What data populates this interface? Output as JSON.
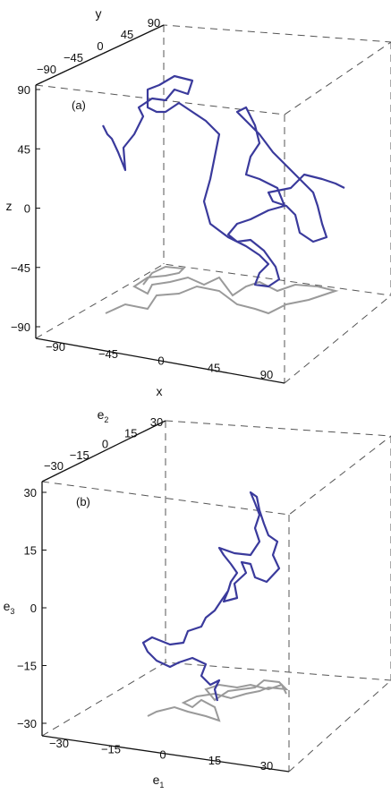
{
  "colors": {
    "trajectory": "#3a3a9c",
    "projection": "#9a9a9a",
    "box": "#555555",
    "axis": "#111111"
  },
  "chart_data": [
    {
      "type": "line",
      "panel_label": "(a)",
      "xlabel": "x",
      "ylabel": "y",
      "zlabel": "z",
      "xlim": [
        -100,
        100
      ],
      "ylim": [
        -100,
        100
      ],
      "zlim": [
        -100,
        100
      ],
      "x_ticks": [
        "−90",
        "−45",
        "0",
        "45",
        "90"
      ],
      "y_ticks": [
        "−90",
        "−45",
        "0",
        "45",
        "90"
      ],
      "z_ticks": [
        "90",
        "45",
        "0",
        "−45",
        "−90"
      ],
      "grid": false,
      "series": [
        {
          "points": [
            [
              -45,
              5,
              80
            ],
            [
              -50,
              15,
              75
            ],
            [
              -55,
              25,
              60
            ],
            [
              -40,
              20,
              50
            ],
            [
              -20,
              15,
              60
            ],
            [
              -10,
              5,
              80
            ],
            [
              -20,
              -5,
              95
            ],
            [
              -10,
              0,
              100
            ],
            [
              0,
              10,
              90
            ],
            [
              10,
              15,
              95
            ],
            [
              20,
              20,
              100
            ],
            [
              25,
              15,
              90
            ],
            [
              20,
              10,
              80
            ],
            [
              30,
              0,
              70
            ],
            [
              15,
              -10,
              60
            ],
            [
              10,
              -20,
              40
            ],
            [
              0,
              -25,
              20
            ],
            [
              10,
              -30,
              0
            ],
            [
              20,
              -20,
              -20
            ],
            [
              30,
              -10,
              -30
            ],
            [
              35,
              0,
              -15
            ],
            [
              45,
              10,
              5
            ],
            [
              55,
              20,
              15
            ],
            [
              60,
              35,
              5
            ],
            [
              65,
              45,
              -5
            ],
            [
              55,
              50,
              -20
            ],
            [
              40,
              40,
              -30
            ],
            [
              35,
              30,
              -45
            ],
            [
              40,
              20,
              -55
            ],
            [
              50,
              25,
              -60
            ],
            [
              45,
              35,
              -50
            ],
            [
              30,
              30,
              -40
            ],
            [
              20,
              20,
              -30
            ],
            [
              25,
              0,
              -10
            ],
            [
              30,
              -10,
              10
            ],
            [
              40,
              -5,
              30
            ],
            [
              45,
              10,
              40
            ],
            [
              40,
              20,
              30
            ],
            [
              30,
              30,
              20
            ],
            [
              35,
              40,
              10
            ],
            [
              50,
              50,
              15
            ]
          ]
        },
        {
          "points": [
            [
              -70,
              10,
              10
            ],
            [
              -65,
              -5,
              15
            ],
            [
              -75,
              -10,
              25
            ],
            [
              -70,
              0,
              20
            ]
          ]
        }
      ],
      "projection": {
        "plane": "z=-90"
      }
    },
    {
      "type": "line",
      "panel_label": "(b)",
      "xlabel": "e1",
      "ylabel": "e2",
      "zlabel": "e3",
      "xlim": [
        -35,
        35
      ],
      "ylim": [
        -35,
        35
      ],
      "zlim": [
        -35,
        35
      ],
      "x_ticks": [
        "−30",
        "−15",
        "0",
        "15",
        "30"
      ],
      "y_ticks": [
        "−30",
        "−15",
        "0",
        "15",
        "30"
      ],
      "z_ticks": [
        "30",
        "15",
        "0",
        "−15",
        "−30"
      ],
      "grid": false,
      "series": [
        {
          "points": [
            [
              15,
              -5,
              -25
            ],
            [
              14,
              -3,
              -20
            ],
            [
              10,
              -6,
              -15
            ],
            [
              5,
              -3,
              -15
            ],
            [
              -5,
              -2,
              -12
            ],
            [
              -10,
              0,
              -15
            ],
            [
              -6,
              3,
              -18
            ],
            [
              -1,
              0,
              -18
            ],
            [
              4,
              2,
              -12
            ],
            [
              8,
              3,
              -8
            ],
            [
              12,
              5,
              -5
            ],
            [
              10,
              6,
              0
            ],
            [
              14,
              8,
              5
            ],
            [
              18,
              7,
              5
            ],
            [
              16,
              9,
              10
            ],
            [
              20,
              8,
              15
            ],
            [
              22,
              10,
              12
            ],
            [
              26,
              12,
              18
            ],
            [
              24,
              14,
              22
            ],
            [
              20,
              13,
              28
            ],
            [
              18,
              12,
              25
            ],
            [
              14,
              11,
              18
            ],
            [
              12,
              9,
              20
            ],
            [
              16,
              8,
              24
            ]
          ]
        }
      ],
      "projection": {
        "plane": "e3=-30"
      }
    }
  ]
}
